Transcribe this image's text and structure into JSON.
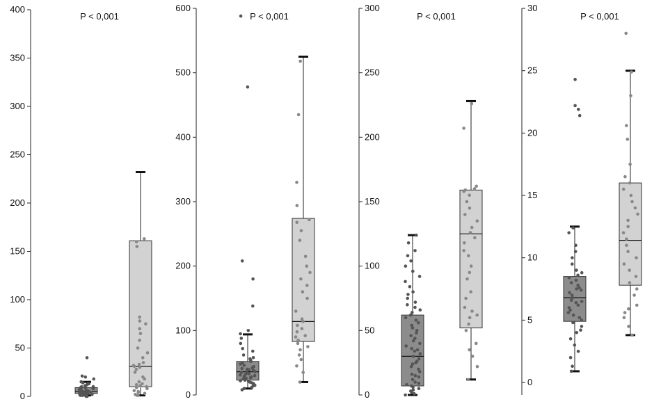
{
  "chart_data": [
    {
      "type": "box",
      "p_value": "P < 0,001",
      "ylim": [
        0,
        400
      ],
      "yticks": [
        0,
        50,
        100,
        150,
        200,
        250,
        300,
        350,
        400
      ],
      "ytick_labels": [
        "0",
        "50",
        "100",
        "150",
        "200",
        "250",
        "300",
        "350",
        "400"
      ],
      "groups": [
        {
          "box": {
            "min": 1,
            "q1": 3,
            "median": 5,
            "q3": 9,
            "max": 15
          },
          "points": [
            0,
            0,
            1,
            1,
            1,
            2,
            2,
            2,
            3,
            3,
            3,
            4,
            4,
            4,
            5,
            5,
            5,
            5,
            6,
            6,
            7,
            7,
            8,
            8,
            9,
            9,
            10,
            10,
            11,
            12,
            13,
            14,
            15,
            18,
            20,
            21,
            40
          ],
          "color": "#8c8c8c",
          "point_color": "#555555"
        },
        {
          "box": {
            "min": 1,
            "q1": 10,
            "median": 31,
            "q3": 161,
            "max": 232
          },
          "points": [
            1,
            2,
            3,
            4,
            5,
            6,
            8,
            9,
            10,
            11,
            12,
            13,
            15,
            18,
            20,
            25,
            28,
            30,
            31,
            32,
            33,
            35,
            40,
            45,
            50,
            58,
            65,
            70,
            75,
            78,
            82,
            155,
            160,
            163
          ],
          "color": "#d2d2d2",
          "point_color": "#888888"
        }
      ]
    },
    {
      "type": "box",
      "p_value": "P < 0,001",
      "ylim": [
        0,
        600
      ],
      "yticks": [
        0,
        100,
        200,
        300,
        400,
        500,
        600
      ],
      "ytick_labels": [
        "0",
        "100",
        "200",
        "300",
        "400",
        "500",
        "600"
      ],
      "groups": [
        {
          "box": {
            "min": 10,
            "q1": 23,
            "median": 36,
            "q3": 52,
            "max": 94
          },
          "points": [
            8,
            10,
            12,
            14,
            15,
            16,
            18,
            19,
            20,
            21,
            22,
            23,
            24,
            25,
            26,
            27,
            28,
            29,
            30,
            31,
            32,
            33,
            34,
            35,
            36,
            37,
            38,
            39,
            40,
            41,
            42,
            44,
            46,
            48,
            50,
            52,
            54,
            56,
            58,
            62,
            68,
            72,
            80,
            88,
            95,
            100,
            138,
            180,
            208,
            478,
            588
          ],
          "color": "#8c8c8c",
          "point_color": "#555555"
        },
        {
          "box": {
            "min": 20,
            "q1": 83,
            "median": 114,
            "q3": 274,
            "max": 525
          },
          "points": [
            20,
            35,
            45,
            55,
            62,
            70,
            75,
            80,
            85,
            90,
            92,
            98,
            103,
            108,
            114,
            118,
            130,
            150,
            160,
            170,
            180,
            190,
            200,
            215,
            240,
            255,
            268,
            272,
            294,
            330,
            435,
            518
          ],
          "color": "#d2d2d2",
          "point_color": "#888888"
        }
      ]
    },
    {
      "type": "box",
      "p_value": "P < 0,001",
      "ylim": [
        0,
        300
      ],
      "yticks": [
        0,
        50,
        100,
        150,
        200,
        250,
        300
      ],
      "ytick_labels": [
        "0",
        "50",
        "100",
        "150",
        "200",
        "250",
        "300"
      ],
      "groups": [
        {
          "box": {
            "min": 0,
            "q1": 7,
            "median": 30,
            "q3": 62,
            "max": 124
          },
          "points": [
            0,
            1,
            2,
            3,
            4,
            5,
            6,
            7,
            8,
            9,
            10,
            12,
            14,
            15,
            16,
            18,
            20,
            22,
            24,
            25,
            26,
            28,
            30,
            32,
            34,
            35,
            36,
            38,
            40,
            42,
            44,
            46,
            48,
            50,
            52,
            54,
            56,
            58,
            60,
            62,
            64,
            66,
            68,
            70,
            72,
            75,
            78,
            80,
            84,
            88,
            92,
            96,
            100,
            104,
            108,
            112,
            118,
            124
          ],
          "color": "#8c8c8c",
          "point_color": "#555555"
        },
        {
          "box": {
            "min": 12,
            "q1": 52,
            "median": 125,
            "q3": 159,
            "max": 228
          },
          "points": [
            12,
            22,
            30,
            35,
            40,
            50,
            55,
            60,
            62,
            65,
            68,
            75,
            80,
            90,
            95,
            100,
            108,
            112,
            118,
            122,
            126,
            130,
            135,
            140,
            145,
            150,
            155,
            158,
            159,
            160,
            162,
            207,
            226
          ],
          "color": "#d2d2d2",
          "point_color": "#888888"
        }
      ]
    },
    {
      "type": "box",
      "p_value": "P < 0,001",
      "ylim": [
        -1,
        30
      ],
      "yticks": [
        0,
        5,
        10,
        15,
        20,
        25,
        30
      ],
      "ytick_labels": [
        "0",
        "5",
        "10",
        "15",
        "20",
        "25",
        "30"
      ],
      "groups": [
        {
          "box": {
            "min": 0.9,
            "q1": 4.9,
            "median": 6.8,
            "q3": 8.5,
            "max": 12.5
          },
          "points": [
            0.9,
            1.3,
            2.0,
            2.5,
            3.0,
            3.5,
            4.0,
            4.2,
            4.5,
            4.8,
            5.0,
            5.2,
            5.4,
            5.6,
            5.8,
            6.0,
            6.2,
            6.4,
            6.5,
            6.6,
            6.8,
            7.0,
            7.2,
            7.4,
            7.5,
            7.6,
            7.8,
            8.0,
            8.2,
            8.4,
            8.6,
            8.8,
            9.0,
            9.5,
            10.0,
            10.5,
            11.0,
            12.0,
            12.4,
            21.4,
            21.9,
            22.2,
            24.3
          ],
          "color": "#8c8c8c",
          "point_color": "#555555"
        },
        {
          "box": {
            "min": 3.8,
            "q1": 7.8,
            "median": 11.4,
            "q3": 16.0,
            "max": 25.0
          },
          "points": [
            3.8,
            4.5,
            5.2,
            5.6,
            5.9,
            6.2,
            7.0,
            7.5,
            8.0,
            8.5,
            9.0,
            9.5,
            10.0,
            10.5,
            11.0,
            11.5,
            12.0,
            12.5,
            13.0,
            13.5,
            14.0,
            14.5,
            15.0,
            15.5,
            16.0,
            16.5,
            17.5,
            19.5,
            20.6,
            23.0,
            24.9,
            28.0
          ],
          "color": "#d2d2d2",
          "point_color": "#888888"
        }
      ]
    }
  ]
}
